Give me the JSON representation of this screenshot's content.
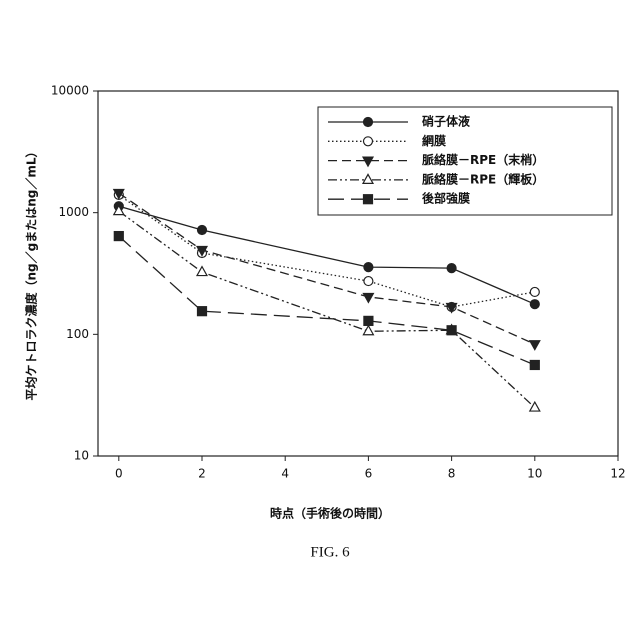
{
  "chart_data": {
    "type": "line",
    "x_label": "時点（手術後の時間）",
    "y_label": "平均ケトロラク濃度（ng／gまたはng／mL）",
    "caption": "FIG. 6",
    "x": [
      0,
      2,
      6,
      8,
      10
    ],
    "xlim": [
      -0.5,
      12
    ],
    "xticks": [
      0,
      2,
      4,
      6,
      8,
      10,
      12
    ],
    "ylim": [
      10,
      10000
    ],
    "yticks": [
      10,
      100,
      1000,
      10000
    ],
    "log_y": true,
    "legend": "top-right",
    "series": [
      {
        "name": "硝子体液",
        "color": "#222222",
        "marker": "circle",
        "filled": true,
        "dash": "solid",
        "values": [
          1130,
          720,
          357,
          350,
          177
        ]
      },
      {
        "name": "網膜",
        "color": "#222222",
        "marker": "circle",
        "filled": false,
        "dash": "dotted",
        "values": [
          1400,
          466,
          274,
          168,
          223
        ]
      },
      {
        "name": "脈絡膜－RPE（末梢）",
        "color": "#222222",
        "marker": "triangle-down",
        "filled": true,
        "dash": "dashed",
        "values": [
          1450,
          493,
          203,
          168,
          83
        ]
      },
      {
        "name": "脈絡膜－RPE（輝板）",
        "color": "#222222",
        "marker": "triangle-up",
        "filled": false,
        "dash": "dashdotdot",
        "values": [
          1030,
          325,
          106,
          108,
          25
        ]
      },
      {
        "name": "後部強膜",
        "color": "#222222",
        "marker": "square",
        "filled": true,
        "dash": "longdash",
        "values": [
          642,
          155,
          129,
          108,
          56
        ]
      }
    ]
  }
}
